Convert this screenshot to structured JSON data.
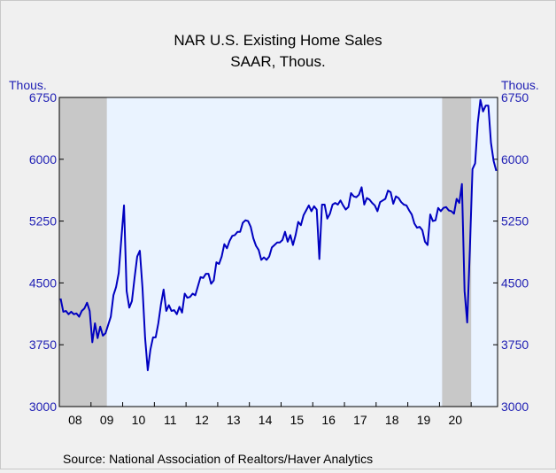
{
  "chart_data": {
    "type": "line",
    "title": "NAR U.S. Existing Home Sales",
    "subtitle": "SAAR, Thous.",
    "units_left": "Thous.",
    "units_right": "Thous.",
    "source": "Source:  National Association of Realtors/Haver Analytics",
    "ylim": [
      3000,
      6750
    ],
    "yticks": [
      3000,
      3750,
      4500,
      5250,
      6000,
      6750
    ],
    "ytick_labels": [
      "3000",
      "3750",
      "4500",
      "5250",
      "6000",
      "6750"
    ],
    "xtick_labels": [
      "08",
      "09",
      "10",
      "11",
      "12",
      "13",
      "14",
      "15",
      "16",
      "17",
      "18",
      "19",
      "20"
    ],
    "start": "2008-01",
    "frequency": "monthly",
    "recessions": [
      {
        "start": "2008-01",
        "end": "2009-06"
      },
      {
        "start": "2020-02",
        "end": "2020-12"
      }
    ],
    "colors": {
      "line": "#0000c0",
      "plot_bg": "#eaf3ff",
      "recession": "#c8c8c8",
      "axis_text": "#1f1fb4"
    },
    "series": [
      {
        "values": [
          4310,
          4150,
          4160,
          4120,
          4150,
          4120,
          4130,
          4090,
          4160,
          4190,
          4260,
          4160,
          3780,
          4010,
          3830,
          3970,
          3860,
          3890,
          3990,
          4090,
          4350,
          4450,
          4620,
          5040,
          5440,
          4400,
          4200,
          4280,
          4560,
          4820,
          4890,
          4440,
          3830,
          3440,
          3690,
          3840,
          3840,
          4010,
          4240,
          4420,
          4160,
          4230,
          4160,
          4170,
          4120,
          4210,
          4140,
          4370,
          4320,
          4330,
          4370,
          4350,
          4460,
          4570,
          4560,
          4610,
          4610,
          4490,
          4530,
          4750,
          4730,
          4820,
          4970,
          4920,
          5010,
          5070,
          5080,
          5120,
          5120,
          5230,
          5260,
          5250,
          5180,
          5040,
          4950,
          4900,
          4780,
          4810,
          4780,
          4820,
          4930,
          4960,
          4990,
          4990,
          5020,
          5120,
          5000,
          5080,
          4960,
          5080,
          5240,
          5200,
          5320,
          5380,
          5440,
          5370,
          5430,
          5390,
          4790,
          5450,
          5450,
          5280,
          5340,
          5450,
          5470,
          5450,
          5500,
          5440,
          5390,
          5420,
          5590,
          5550,
          5540,
          5570,
          5660,
          5450,
          5530,
          5510,
          5470,
          5440,
          5370,
          5480,
          5500,
          5520,
          5620,
          5600,
          5460,
          5550,
          5530,
          5480,
          5450,
          5440,
          5380,
          5330,
          5220,
          5170,
          5180,
          5140,
          5000,
          4960,
          5330,
          5250,
          5260,
          5410,
          5370,
          5410,
          5420,
          5380,
          5370,
          5340,
          5520,
          5470,
          5700,
          4400,
          4020,
          4900,
          5880,
          5950,
          6440,
          6720,
          6580,
          6650,
          6650,
          6200,
          5980,
          5860
        ]
      }
    ]
  }
}
